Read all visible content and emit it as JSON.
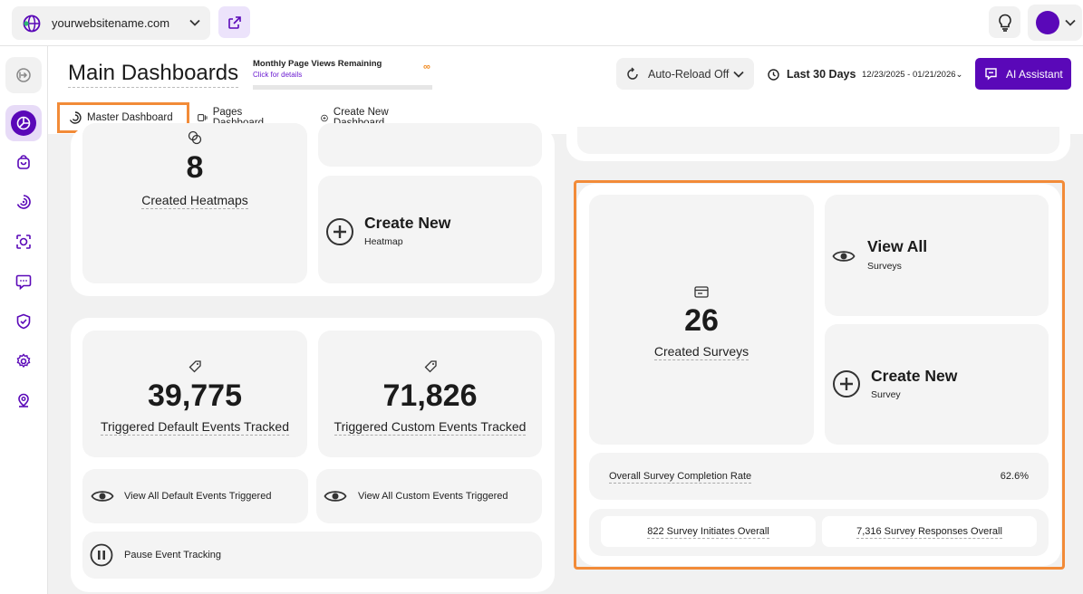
{
  "topbar": {
    "site_name": "yourwebsitename.com"
  },
  "header": {
    "title": "Main Dashboards",
    "pageviews_title": "Monthly Page Views Remaining",
    "pageviews_link": "Click for details",
    "pageviews_value": "∞",
    "autoreload_label": "Auto-Reload Off",
    "range_label": "Last 30 Days",
    "date_range": "12/23/2025 - 01/21/2026",
    "ai_button": "AI Assistant",
    "tabs": [
      {
        "label": "Master Dashboard"
      },
      {
        "label": "Pages Dashboard"
      },
      {
        "label": "Create New Dashboard"
      }
    ]
  },
  "heatmaps": {
    "count": "8",
    "count_label": "Created Heatmaps",
    "create_title": "Create New",
    "create_sub": "Heatmap"
  },
  "events": {
    "default_count": "39,775",
    "default_label": "Triggered Default Events Tracked",
    "custom_count": "71,826",
    "custom_label": "Triggered Custom Events Tracked",
    "view_default": "View All Default Events Triggered",
    "view_custom": "View All Custom Events Triggered",
    "pause": "Pause Event Tracking"
  },
  "surveys": {
    "count": "26",
    "count_label": "Created Surveys",
    "view_title": "View All",
    "view_sub": "Surveys",
    "create_title": "Create New",
    "create_sub": "Survey",
    "completion_label": "Overall Survey Completion Rate",
    "completion_value": "62.6%",
    "initiates": "822 Survey Initiates Overall",
    "responses": "7,316 Survey Responses Overall"
  },
  "colors": {
    "brand": "#5a08b8",
    "highlight": "#f28b38"
  }
}
